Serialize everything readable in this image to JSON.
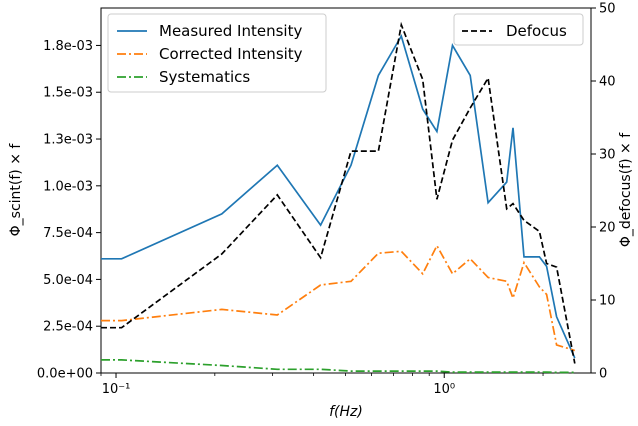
{
  "chart_data": {
    "type": "line",
    "xlabel": "f(Hz)",
    "ylabel_left": "Φ_scint(f) × f",
    "ylabel_right": "Φ_defocus(f) × f",
    "xscale": "log",
    "xlim": [
      0.09,
      2.8
    ],
    "ylim_left": [
      0,
      0.00195
    ],
    "ylim_right": [
      0,
      50
    ],
    "x_ticks": [
      {
        "value": 0.1,
        "label": "10⁻¹"
      },
      {
        "value": 1,
        "label": "10⁰"
      }
    ],
    "y_left_ticks": [
      {
        "value": 0,
        "label": "0.0e+00"
      },
      {
        "value": 0.00025,
        "label": "2.5e-04"
      },
      {
        "value": 0.0005,
        "label": "5.0e-04"
      },
      {
        "value": 0.00075,
        "label": "7.5e-04"
      },
      {
        "value": 0.001,
        "label": "1.0e-03"
      },
      {
        "value": 0.00125,
        "label": "1.3e-03"
      },
      {
        "value": 0.0015,
        "label": "1.5e-03"
      },
      {
        "value": 0.00175,
        "label": "1.8e-03"
      }
    ],
    "y_right_ticks": [
      {
        "value": 0,
        "label": "0"
      },
      {
        "value": 10,
        "label": "10"
      },
      {
        "value": 20,
        "label": "20"
      },
      {
        "value": 30,
        "label": "30"
      },
      {
        "value": 40,
        "label": "40"
      },
      {
        "value": 50,
        "label": "50"
      }
    ],
    "grid": false,
    "legend_left_placement": "upper-left",
    "legend_right_placement": "upper-right",
    "series": [
      {
        "name": "Measured Intensity",
        "axis": "left",
        "color": "#1f77b4",
        "dash": "solid",
        "x": [
          0.09,
          0.104,
          0.21,
          0.31,
          0.42,
          0.52,
          0.63,
          0.74,
          0.86,
          0.95,
          1.06,
          1.2,
          1.36,
          1.55,
          1.62,
          1.75,
          1.95,
          2.05,
          2.2,
          2.5
        ],
        "y": [
          0.00061,
          0.00061,
          0.00085,
          0.00111,
          0.00079,
          0.00111,
          0.00159,
          0.0018,
          0.00141,
          0.00129,
          0.00175,
          0.00159,
          0.00091,
          0.00102,
          0.00131,
          0.00062,
          0.00062,
          0.00057,
          0.0003,
          8e-05
        ]
      },
      {
        "name": "Corrected Intensity",
        "axis": "left",
        "color": "#ff7f0e",
        "dash": "dashdot",
        "x": [
          0.09,
          0.104,
          0.21,
          0.31,
          0.42,
          0.52,
          0.63,
          0.74,
          0.86,
          0.95,
          1.06,
          1.2,
          1.36,
          1.55,
          1.62,
          1.75,
          1.95,
          2.05,
          2.2,
          2.5
        ],
        "y": [
          0.00028,
          0.00028,
          0.00034,
          0.00031,
          0.00047,
          0.00049,
          0.00064,
          0.00065,
          0.00053,
          0.00068,
          0.00053,
          0.00061,
          0.00051,
          0.00049,
          0.0004,
          0.00059,
          0.00046,
          0.00042,
          0.00015,
          0.00012
        ]
      },
      {
        "name": "Systematics",
        "axis": "left",
        "color": "#2ca02c",
        "dash": "dashdot",
        "x": [
          0.09,
          0.104,
          0.21,
          0.31,
          0.42,
          0.52,
          0.63,
          0.74,
          0.86,
          0.95,
          1.06,
          1.2,
          1.36,
          1.55,
          1.62,
          1.75,
          1.95,
          2.05,
          2.2,
          2.5
        ],
        "y": [
          7e-05,
          7e-05,
          4e-05,
          2e-05,
          2e-05,
          1e-05,
          1e-05,
          1e-05,
          1e-05,
          1e-05,
          5e-06,
          5e-06,
          5e-06,
          5e-06,
          5e-06,
          5e-06,
          5e-06,
          5e-06,
          3e-06,
          3e-06
        ]
      },
      {
        "name": "Defocus",
        "axis": "right",
        "color": "#000000",
        "dash": "dashed",
        "x": [
          0.09,
          0.104,
          0.21,
          0.31,
          0.42,
          0.52,
          0.63,
          0.74,
          0.86,
          0.95,
          1.06,
          1.2,
          1.36,
          1.55,
          1.62,
          1.75,
          1.95,
          2.05,
          2.2,
          2.5
        ],
        "y": [
          6.2,
          6.2,
          16.3,
          24.4,
          15.8,
          30.4,
          30.4,
          47.7,
          40.2,
          23.8,
          31.9,
          36.3,
          40.4,
          22.5,
          23.2,
          20.9,
          19.4,
          15.0,
          14.5,
          1.3
        ]
      }
    ]
  }
}
